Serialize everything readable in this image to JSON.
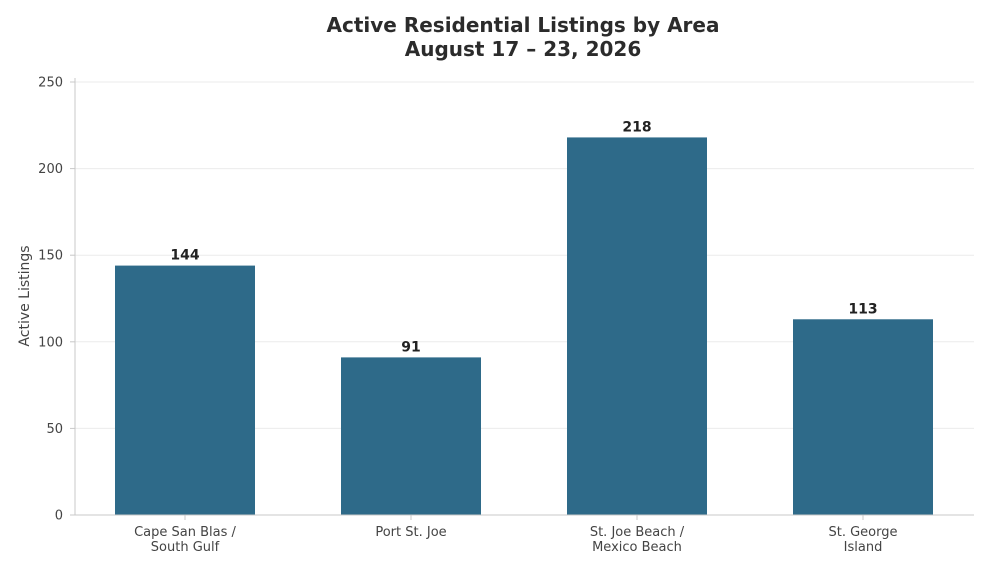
{
  "chart_data": {
    "type": "bar",
    "title": "Active Residential Listings by Area",
    "subtitle": "August 17 – 23, 2026",
    "xlabel": "",
    "ylabel": "Active Listings",
    "categories": [
      [
        "Cape San Blas /",
        "South Gulf"
      ],
      [
        "Port St. Joe"
      ],
      [
        "St. Joe Beach /",
        "Mexico Beach"
      ],
      [
        "St. George",
        "Island"
      ]
    ],
    "values": [
      144,
      91,
      218,
      113
    ],
    "ylim": [
      0,
      250
    ],
    "yticks": [
      0,
      50,
      100,
      150,
      200,
      250
    ],
    "bar_color": "#2e6a89",
    "grid": "horizontal",
    "legend": "none"
  }
}
